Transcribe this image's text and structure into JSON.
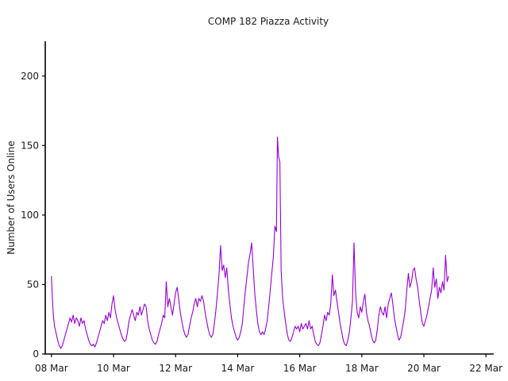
{
  "chart_data": {
    "type": "line",
    "title": "COMP 182 Piazza Activity",
    "xlabel": "",
    "ylabel": "Number of Users Online",
    "x_unit": "days since 08 Mar",
    "xlim": [
      -0.2,
      14.25
    ],
    "ylim": [
      0,
      225
    ],
    "x_ticks": [
      {
        "value": 0,
        "label": "08 Mar"
      },
      {
        "value": 2,
        "label": "10 Mar"
      },
      {
        "value": 4,
        "label": "12 Mar"
      },
      {
        "value": 6,
        "label": "14 Mar"
      },
      {
        "value": 8,
        "label": "16 Mar"
      },
      {
        "value": 10,
        "label": "18 Mar"
      },
      {
        "value": 12,
        "label": "20 Mar"
      },
      {
        "value": 14,
        "label": "22 Mar"
      }
    ],
    "y_ticks": [
      {
        "value": 0,
        "label": "0"
      },
      {
        "value": 50,
        "label": "50"
      },
      {
        "value": 100,
        "label": "100"
      },
      {
        "value": 150,
        "label": "150"
      },
      {
        "value": 200,
        "label": "200"
      }
    ],
    "grid": false,
    "legend": "none",
    "series": [
      {
        "name": "",
        "color": "#9400d3",
        "points": [
          [
            0.0,
            56
          ],
          [
            0.03,
            40
          ],
          [
            0.06,
            28
          ],
          [
            0.1,
            20
          ],
          [
            0.15,
            15
          ],
          [
            0.2,
            10
          ],
          [
            0.25,
            6
          ],
          [
            0.3,
            4
          ],
          [
            0.35,
            6
          ],
          [
            0.4,
            10
          ],
          [
            0.45,
            14
          ],
          [
            0.5,
            18
          ],
          [
            0.55,
            22
          ],
          [
            0.6,
            26
          ],
          [
            0.65,
            23
          ],
          [
            0.7,
            28
          ],
          [
            0.75,
            22
          ],
          [
            0.8,
            26
          ],
          [
            0.85,
            24
          ],
          [
            0.9,
            20
          ],
          [
            0.95,
            26
          ],
          [
            1.0,
            22
          ],
          [
            1.05,
            24
          ],
          [
            1.1,
            18
          ],
          [
            1.15,
            14
          ],
          [
            1.2,
            10
          ],
          [
            1.25,
            7
          ],
          [
            1.3,
            6
          ],
          [
            1.35,
            7
          ],
          [
            1.4,
            5
          ],
          [
            1.45,
            8
          ],
          [
            1.5,
            12
          ],
          [
            1.55,
            16
          ],
          [
            1.6,
            20
          ],
          [
            1.65,
            24
          ],
          [
            1.7,
            22
          ],
          [
            1.75,
            28
          ],
          [
            1.8,
            24
          ],
          [
            1.85,
            30
          ],
          [
            1.9,
            26
          ],
          [
            1.95,
            36
          ],
          [
            2.0,
            42
          ],
          [
            2.05,
            32
          ],
          [
            2.1,
            26
          ],
          [
            2.15,
            22
          ],
          [
            2.2,
            18
          ],
          [
            2.25,
            14
          ],
          [
            2.3,
            11
          ],
          [
            2.35,
            9
          ],
          [
            2.4,
            10
          ],
          [
            2.45,
            16
          ],
          [
            2.5,
            24
          ],
          [
            2.55,
            28
          ],
          [
            2.6,
            32
          ],
          [
            2.65,
            28
          ],
          [
            2.7,
            24
          ],
          [
            2.75,
            30
          ],
          [
            2.8,
            28
          ],
          [
            2.85,
            34
          ],
          [
            2.9,
            28
          ],
          [
            2.95,
            32
          ],
          [
            3.0,
            36
          ],
          [
            3.05,
            34
          ],
          [
            3.1,
            24
          ],
          [
            3.15,
            18
          ],
          [
            3.2,
            14
          ],
          [
            3.25,
            10
          ],
          [
            3.3,
            8
          ],
          [
            3.35,
            7
          ],
          [
            3.4,
            9
          ],
          [
            3.45,
            14
          ],
          [
            3.5,
            18
          ],
          [
            3.55,
            22
          ],
          [
            3.6,
            28
          ],
          [
            3.65,
            26
          ],
          [
            3.7,
            52
          ],
          [
            3.75,
            34
          ],
          [
            3.8,
            40
          ],
          [
            3.85,
            34
          ],
          [
            3.9,
            28
          ],
          [
            3.95,
            36
          ],
          [
            4.0,
            44
          ],
          [
            4.05,
            48
          ],
          [
            4.1,
            40
          ],
          [
            4.15,
            30
          ],
          [
            4.2,
            24
          ],
          [
            4.25,
            18
          ],
          [
            4.3,
            14
          ],
          [
            4.35,
            12
          ],
          [
            4.4,
            14
          ],
          [
            4.45,
            20
          ],
          [
            4.5,
            26
          ],
          [
            4.55,
            30
          ],
          [
            4.6,
            36
          ],
          [
            4.65,
            40
          ],
          [
            4.7,
            34
          ],
          [
            4.75,
            40
          ],
          [
            4.8,
            38
          ],
          [
            4.85,
            42
          ],
          [
            4.9,
            38
          ],
          [
            4.95,
            30
          ],
          [
            5.0,
            24
          ],
          [
            5.05,
            18
          ],
          [
            5.1,
            14
          ],
          [
            5.15,
            12
          ],
          [
            5.2,
            14
          ],
          [
            5.25,
            22
          ],
          [
            5.3,
            32
          ],
          [
            5.35,
            44
          ],
          [
            5.4,
            58
          ],
          [
            5.45,
            78
          ],
          [
            5.5,
            60
          ],
          [
            5.55,
            64
          ],
          [
            5.6,
            55
          ],
          [
            5.65,
            62
          ],
          [
            5.7,
            46
          ],
          [
            5.75,
            36
          ],
          [
            5.8,
            26
          ],
          [
            5.85,
            20
          ],
          [
            5.9,
            16
          ],
          [
            5.95,
            12
          ],
          [
            6.0,
            10
          ],
          [
            6.05,
            12
          ],
          [
            6.1,
            16
          ],
          [
            6.15,
            22
          ],
          [
            6.2,
            34
          ],
          [
            6.25,
            46
          ],
          [
            6.3,
            56
          ],
          [
            6.35,
            66
          ],
          [
            6.4,
            72
          ],
          [
            6.45,
            80
          ],
          [
            6.5,
            62
          ],
          [
            6.55,
            44
          ],
          [
            6.6,
            32
          ],
          [
            6.65,
            22
          ],
          [
            6.7,
            16
          ],
          [
            6.75,
            14
          ],
          [
            6.8,
            16
          ],
          [
            6.85,
            14
          ],
          [
            6.9,
            18
          ],
          [
            6.95,
            24
          ],
          [
            7.0,
            34
          ],
          [
            7.05,
            46
          ],
          [
            7.1,
            58
          ],
          [
            7.15,
            70
          ],
          [
            7.2,
            92
          ],
          [
            7.25,
            88
          ],
          [
            7.28,
            156
          ],
          [
            7.32,
            142
          ],
          [
            7.36,
            138
          ],
          [
            7.4,
            60
          ],
          [
            7.45,
            40
          ],
          [
            7.5,
            30
          ],
          [
            7.55,
            22
          ],
          [
            7.6,
            14
          ],
          [
            7.65,
            10
          ],
          [
            7.7,
            9
          ],
          [
            7.75,
            12
          ],
          [
            7.8,
            16
          ],
          [
            7.85,
            20
          ],
          [
            7.9,
            18
          ],
          [
            7.95,
            20
          ],
          [
            8.0,
            16
          ],
          [
            8.05,
            22
          ],
          [
            8.1,
            18
          ],
          [
            8.15,
            20
          ],
          [
            8.2,
            22
          ],
          [
            8.25,
            18
          ],
          [
            8.3,
            24
          ],
          [
            8.35,
            18
          ],
          [
            8.4,
            20
          ],
          [
            8.45,
            14
          ],
          [
            8.5,
            9
          ],
          [
            8.55,
            7
          ],
          [
            8.6,
            6
          ],
          [
            8.65,
            8
          ],
          [
            8.7,
            14
          ],
          [
            8.75,
            20
          ],
          [
            8.8,
            28
          ],
          [
            8.85,
            24
          ],
          [
            8.9,
            30
          ],
          [
            8.95,
            28
          ],
          [
            9.0,
            36
          ],
          [
            9.05,
            57
          ],
          [
            9.1,
            42
          ],
          [
            9.15,
            46
          ],
          [
            9.2,
            38
          ],
          [
            9.25,
            30
          ],
          [
            9.3,
            22
          ],
          [
            9.35,
            16
          ],
          [
            9.4,
            10
          ],
          [
            9.45,
            7
          ],
          [
            9.5,
            6
          ],
          [
            9.55,
            10
          ],
          [
            9.6,
            16
          ],
          [
            9.65,
            26
          ],
          [
            9.7,
            38
          ],
          [
            9.75,
            80
          ],
          [
            9.8,
            44
          ],
          [
            9.85,
            30
          ],
          [
            9.9,
            26
          ],
          [
            9.95,
            34
          ],
          [
            10.0,
            30
          ],
          [
            10.05,
            38
          ],
          [
            10.1,
            43
          ],
          [
            10.15,
            30
          ],
          [
            10.2,
            24
          ],
          [
            10.25,
            20
          ],
          [
            10.3,
            14
          ],
          [
            10.35,
            10
          ],
          [
            10.4,
            8
          ],
          [
            10.45,
            10
          ],
          [
            10.5,
            18
          ],
          [
            10.55,
            28
          ],
          [
            10.6,
            34
          ],
          [
            10.65,
            30
          ],
          [
            10.7,
            28
          ],
          [
            10.75,
            34
          ],
          [
            10.8,
            26
          ],
          [
            10.85,
            36
          ],
          [
            10.9,
            40
          ],
          [
            10.95,
            44
          ],
          [
            11.0,
            36
          ],
          [
            11.05,
            26
          ],
          [
            11.1,
            20
          ],
          [
            11.15,
            14
          ],
          [
            11.2,
            10
          ],
          [
            11.25,
            12
          ],
          [
            11.3,
            18
          ],
          [
            11.35,
            24
          ],
          [
            11.4,
            32
          ],
          [
            11.45,
            46
          ],
          [
            11.5,
            58
          ],
          [
            11.55,
            48
          ],
          [
            11.6,
            52
          ],
          [
            11.65,
            60
          ],
          [
            11.7,
            62
          ],
          [
            11.75,
            54
          ],
          [
            11.8,
            48
          ],
          [
            11.85,
            38
          ],
          [
            11.9,
            30
          ],
          [
            11.95,
            22
          ],
          [
            12.0,
            20
          ],
          [
            12.05,
            24
          ],
          [
            12.1,
            28
          ],
          [
            12.15,
            34
          ],
          [
            12.2,
            40
          ],
          [
            12.25,
            46
          ],
          [
            12.3,
            62
          ],
          [
            12.35,
            48
          ],
          [
            12.4,
            54
          ],
          [
            12.45,
            40
          ],
          [
            12.5,
            48
          ],
          [
            12.55,
            44
          ],
          [
            12.6,
            52
          ],
          [
            12.65,
            46
          ],
          [
            12.7,
            71
          ],
          [
            12.75,
            52
          ],
          [
            12.8,
            56
          ]
        ]
      }
    ]
  }
}
